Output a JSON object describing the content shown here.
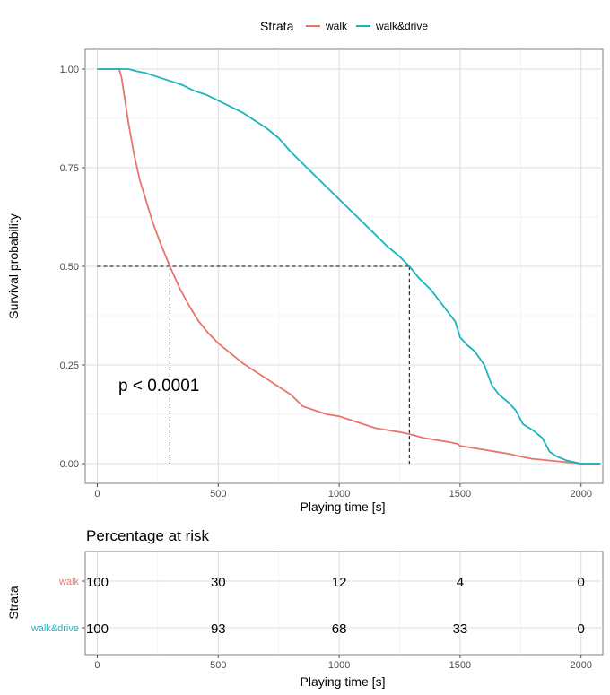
{
  "legend": {
    "title": "Strata",
    "items": [
      {
        "label": "walk",
        "color": "#E8756D"
      },
      {
        "label": "walk&drive",
        "color": "#19B4BE"
      }
    ]
  },
  "chart_data": [
    {
      "type": "line",
      "xlabel": "Playing time [s]",
      "ylabel": "Survival probability",
      "xlim": [
        -50,
        2090
      ],
      "ylim": [
        -0.05,
        1.05
      ],
      "xticks": [
        0,
        500,
        1000,
        1500,
        2000
      ],
      "yticks": [
        "0.00",
        "0.25",
        "0.50",
        "0.75",
        "1.00"
      ],
      "ytick_values": [
        0,
        0.25,
        0.5,
        0.75,
        1.0
      ],
      "grid": true,
      "legend_position": "top",
      "annotation": "p < 0.0001",
      "median_lines": {
        "y": 0.5,
        "x": [
          300,
          1290
        ]
      },
      "series": [
        {
          "name": "walk",
          "color": "#E8756D",
          "points": [
            [
              0,
              1
            ],
            [
              90,
              1
            ],
            [
              100,
              0.98
            ],
            [
              110,
              0.94
            ],
            [
              130,
              0.86
            ],
            [
              150,
              0.79
            ],
            [
              175,
              0.72
            ],
            [
              200,
              0.67
            ],
            [
              230,
              0.61
            ],
            [
              260,
              0.56
            ],
            [
              300,
              0.5
            ],
            [
              340,
              0.445
            ],
            [
              380,
              0.4
            ],
            [
              420,
              0.36
            ],
            [
              460,
              0.33
            ],
            [
              500,
              0.305
            ],
            [
              550,
              0.28
            ],
            [
              600,
              0.255
            ],
            [
              650,
              0.235
            ],
            [
              700,
              0.215
            ],
            [
              750,
              0.195
            ],
            [
              800,
              0.175
            ],
            [
              850,
              0.145
            ],
            [
              900,
              0.135
            ],
            [
              950,
              0.125
            ],
            [
              1000,
              0.12
            ],
            [
              1050,
              0.11
            ],
            [
              1100,
              0.1
            ],
            [
              1150,
              0.09
            ],
            [
              1200,
              0.085
            ],
            [
              1250,
              0.08
            ],
            [
              1290,
              0.075
            ],
            [
              1350,
              0.065
            ],
            [
              1400,
              0.06
            ],
            [
              1450,
              0.055
            ],
            [
              1490,
              0.05
            ],
            [
              1500,
              0.045
            ],
            [
              1550,
              0.04
            ],
            [
              1600,
              0.035
            ],
            [
              1650,
              0.03
            ],
            [
              1700,
              0.025
            ],
            [
              1750,
              0.018
            ],
            [
              1800,
              0.012
            ],
            [
              1850,
              0.009
            ],
            [
              1900,
              0.006
            ],
            [
              1950,
              0.003
            ],
            [
              2000,
              0.0
            ],
            [
              2080,
              0.0
            ]
          ]
        },
        {
          "name": "walk&drive",
          "color": "#19B4BE",
          "points": [
            [
              0,
              1
            ],
            [
              130,
              1
            ],
            [
              160,
              0.995
            ],
            [
              200,
              0.99
            ],
            [
              250,
              0.98
            ],
            [
              300,
              0.97
            ],
            [
              350,
              0.96
            ],
            [
              400,
              0.945
            ],
            [
              450,
              0.935
            ],
            [
              500,
              0.92
            ],
            [
              550,
              0.905
            ],
            [
              600,
              0.89
            ],
            [
              650,
              0.87
            ],
            [
              700,
              0.85
            ],
            [
              750,
              0.825
            ],
            [
              800,
              0.79
            ],
            [
              850,
              0.76
            ],
            [
              900,
              0.73
            ],
            [
              950,
              0.7
            ],
            [
              1000,
              0.67
            ],
            [
              1050,
              0.64
            ],
            [
              1100,
              0.61
            ],
            [
              1150,
              0.58
            ],
            [
              1200,
              0.55
            ],
            [
              1250,
              0.525
            ],
            [
              1290,
              0.5
            ],
            [
              1330,
              0.47
            ],
            [
              1380,
              0.44
            ],
            [
              1430,
              0.4
            ],
            [
              1480,
              0.36
            ],
            [
              1500,
              0.32
            ],
            [
              1530,
              0.3
            ],
            [
              1560,
              0.285
            ],
            [
              1600,
              0.25
            ],
            [
              1630,
              0.2
            ],
            [
              1660,
              0.175
            ],
            [
              1700,
              0.155
            ],
            [
              1730,
              0.135
            ],
            [
              1760,
              0.1
            ],
            [
              1800,
              0.085
            ],
            [
              1840,
              0.065
            ],
            [
              1870,
              0.03
            ],
            [
              1900,
              0.018
            ],
            [
              1940,
              0.008
            ],
            [
              1970,
              0.004
            ],
            [
              2000,
              0.0
            ],
            [
              2080,
              0.0
            ]
          ]
        }
      ]
    },
    {
      "type": "table",
      "title": "Percentage at risk",
      "xlabel": "Playing time [s]",
      "ylabel": "Strata",
      "xticks": [
        0,
        500,
        1000,
        1500,
        2000
      ],
      "rows": [
        {
          "name": "walk",
          "color": "#E8756D",
          "values": [
            "100",
            "30",
            "12",
            "4",
            "0"
          ]
        },
        {
          "name": "walk&drive",
          "color": "#19B4BE",
          "values": [
            "100",
            "93",
            "68",
            "33",
            "0"
          ]
        }
      ]
    }
  ]
}
